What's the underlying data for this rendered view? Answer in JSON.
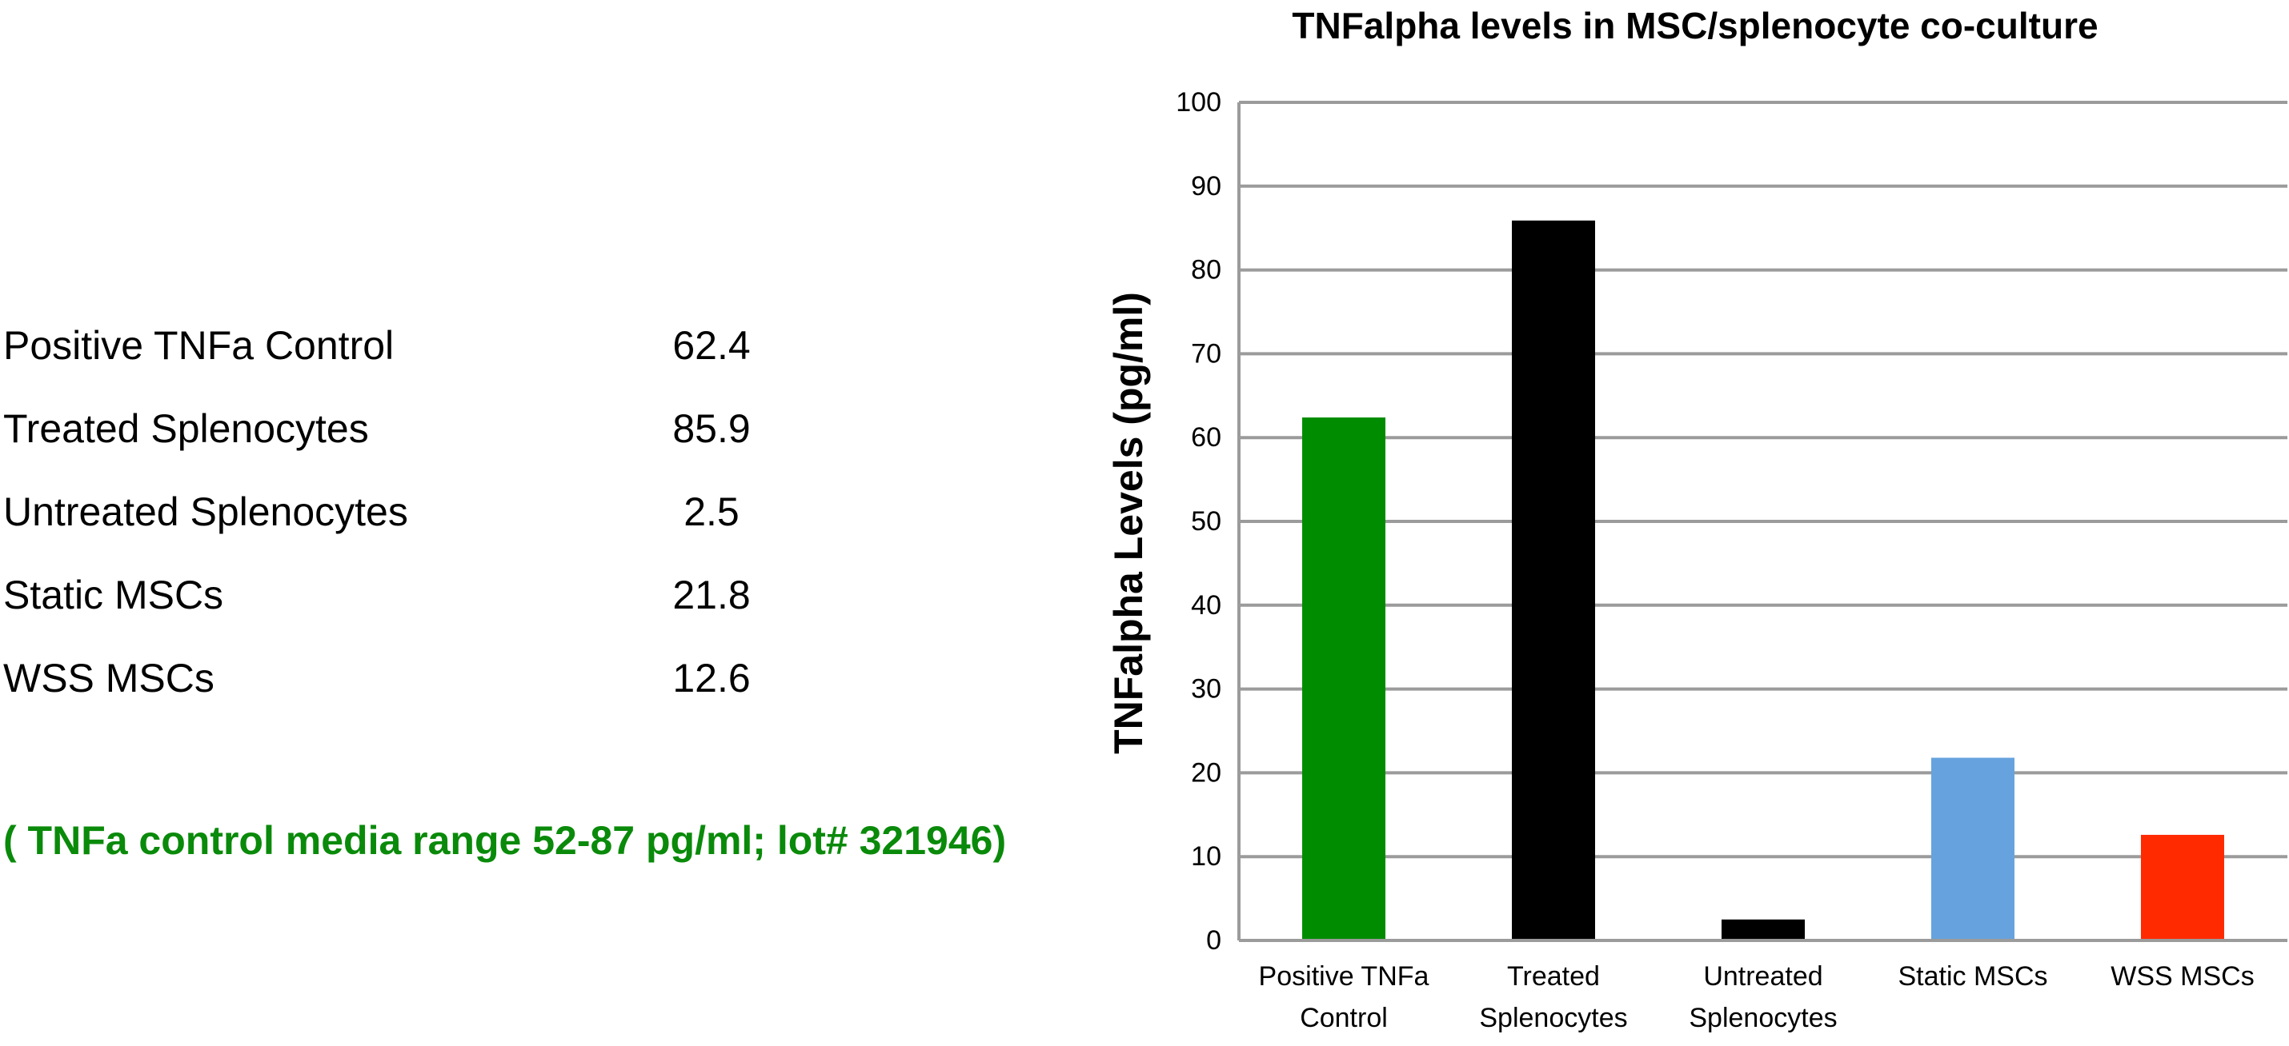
{
  "table": {
    "rows": [
      {
        "label": "Positive TNFa Control",
        "value": "62.4"
      },
      {
        "label": "Treated Splenocytes",
        "value": "85.9"
      },
      {
        "label": "Untreated Splenocytes",
        "value": "2.5"
      },
      {
        "label": "Static MSCs",
        "value": "21.8"
      },
      {
        "label": "WSS MSCs",
        "value": "12.6"
      }
    ]
  },
  "note": "( TNFa control media range 52-87 pg/ml; lot# 321946)",
  "colors": {
    "note": "#0a8a0a",
    "grid": "#9b9b9b"
  },
  "chart_data": {
    "type": "bar",
    "title": "TNFalpha levels in MSC/splenocyte co-culture",
    "ylabel": "TNFalpha Levels (pg/ml)",
    "xlabel": "",
    "ylim": [
      0,
      100
    ],
    "yticks": [
      0,
      10,
      20,
      30,
      40,
      50,
      60,
      70,
      80,
      90,
      100
    ],
    "grid": true,
    "categories": [
      [
        "Positive TNFa",
        "Control"
      ],
      [
        "Treated",
        "Splenocytes"
      ],
      [
        "Untreated",
        "Splenocytes"
      ],
      [
        "Static MSCs"
      ],
      [
        "WSS MSCs"
      ]
    ],
    "values": [
      62.4,
      85.9,
      2.5,
      21.8,
      12.6
    ],
    "bar_colors": [
      "#008c00",
      "#000000",
      "#000000",
      "#66a3de",
      "#ff2a00"
    ]
  }
}
